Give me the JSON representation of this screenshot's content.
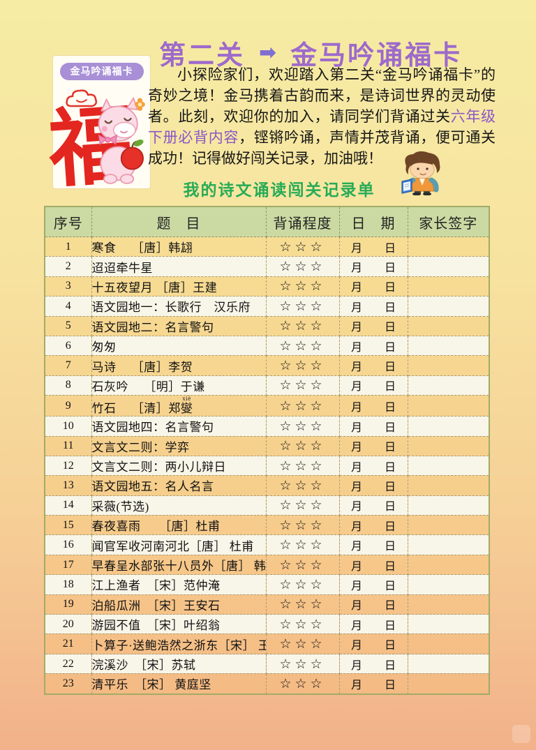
{
  "header": {
    "card": {
      "badge_label": "金马吟诵福卡",
      "fu_character": "福"
    },
    "title": {
      "level_label": "第二关",
      "arrow_glyph": "➡",
      "card_label": "金马吟诵福卡"
    },
    "intro": {
      "text_before_highlight": "小探险家们，欢迎踏入第二关“金马吟诵福卡”的奇妙之境！金马携着古韵而来，是诗词世界的灵动使者。此刻，欢迎你的加入，请同学们背诵过关",
      "highlight_text": "六年级下册必背内容",
      "text_after_highlight": "，铿锵吟诵，声情并茂背诵，便可通关成功！记得做好闯关记录，加油哦！"
    }
  },
  "subtitle": "我的诗文诵读闯关记录单",
  "table": {
    "columns": [
      {
        "id": "index",
        "label": "序号"
      },
      {
        "id": "title",
        "label": "题　目"
      },
      {
        "id": "recite-level",
        "label": "背诵程度"
      },
      {
        "id": "date",
        "label": "日　期"
      },
      {
        "id": "parent-signature",
        "label": "家长签字"
      }
    ],
    "stars_display": "☆☆☆",
    "date_month_label": "月",
    "date_day_label": "日",
    "rows": [
      {
        "no": "1",
        "title": "寒食　 ［唐］韩翃"
      },
      {
        "no": "2",
        "title": "迢迢牵牛星"
      },
      {
        "no": "3",
        "title": "十五夜望月 ［唐］王建"
      },
      {
        "no": "4",
        "title": "语文园地一：长歌行　汉乐府"
      },
      {
        "no": "5",
        "title": "语文园地二：名言警句"
      },
      {
        "no": "6",
        "title": "匆匆"
      },
      {
        "no": "7",
        "title": "马诗　 ［唐］李贺"
      },
      {
        "no": "8",
        "title": "石灰吟　 ［明］于谦"
      },
      {
        "no": "9",
        "title": "竹石　 ［清］郑",
        "ruby_base": "燮",
        "ruby_text": "xiè"
      },
      {
        "no": "10",
        "title": "语文园地四：名言警句"
      },
      {
        "no": "11",
        "title": "文言文二则：学弈"
      },
      {
        "no": "12",
        "title": "文言文二则：两小儿辩日"
      },
      {
        "no": "13",
        "title": "语文园地五：名人名言"
      },
      {
        "no": "14",
        "title": "采薇(节选)"
      },
      {
        "no": "15",
        "title": "春夜喜雨　　［唐］杜甫"
      },
      {
        "no": "16",
        "title": "闻官军收河南河北［唐］ 杜甫"
      },
      {
        "no": "17",
        "title": "早春呈水部张十八员外［唐］ 韩愈"
      },
      {
        "no": "18",
        "title": "江上渔者　［宋］范仲淹"
      },
      {
        "no": "19",
        "title": "泊船瓜洲　［宋］王安石"
      },
      {
        "no": "20",
        "title": "游园不值　［宋］叶绍翁"
      },
      {
        "no": "21",
        "title": "卜算子·送鲍浩然之浙东［宋］ 王观"
      },
      {
        "no": "22",
        "title": "浣溪沙　［宋］苏轼"
      },
      {
        "no": "23",
        "title": "清平乐　［宋］ 黄庭坚"
      }
    ]
  },
  "colors": {
    "page_top": "#f6eca3",
    "page_bottom": "#f2b18a",
    "header_row_green": "#cbdaa3",
    "even_row_cream": "#f8f6e9",
    "star_pink": "#e14b82",
    "title_purple": "#9d6acb",
    "highlight_purple": "#8a56c8",
    "subtitle_green": "#27ab56",
    "fu_red": "#e3261f",
    "badge_purple": "#a88fd6"
  },
  "icons": {
    "arrow": "right-arrow-icon",
    "cloud": "cloud-icon",
    "pony": "pony-illustration",
    "boy": "reading-boy-illustration"
  }
}
